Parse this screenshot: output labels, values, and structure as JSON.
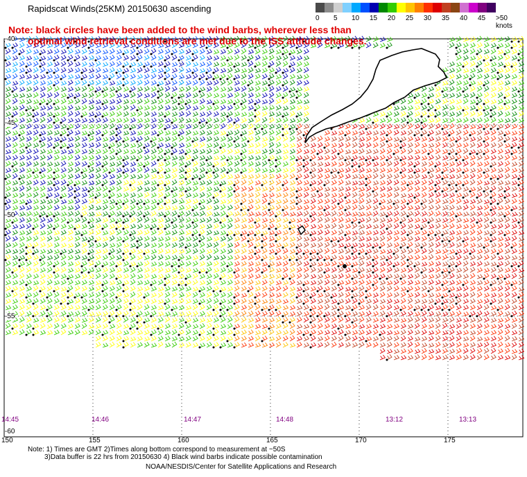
{
  "title": "Rapidscat Winds(25KM) 20150630 ascending",
  "note": {
    "line1": "Note: black circles have been added to the wind barbs, wherever less than",
    "line2": "optimal wind retrieval conditions are met due to the ISS attitude changes."
  },
  "colorbar": {
    "labels": [
      "0",
      "5",
      "10",
      "15",
      "20",
      "25",
      "30",
      "35",
      "40",
      "45",
      ">50 knots"
    ],
    "colors": [
      "#4a4a4a",
      "#8c8c8c",
      "#cfcfcf",
      "#7fd0ff",
      "#00a8ff",
      "#0050ff",
      "#0000b0",
      "#008800",
      "#33cc00",
      "#ffff00",
      "#ffc400",
      "#ff8000",
      "#ff3000",
      "#dd0000",
      "#c04020",
      "#8b4513",
      "#d070d0",
      "#cc00cc",
      "#800080",
      "#400060"
    ]
  },
  "axes": {
    "lon_ticks": [
      "150",
      "155",
      "160",
      "165",
      "170",
      "175"
    ],
    "lat_ticks": [
      "-40",
      "-45",
      "-50",
      "-55",
      "-60"
    ]
  },
  "times": [
    "14:45",
    "14:46",
    "14:47",
    "14:48",
    "13:12",
    "13:13"
  ],
  "footer": {
    "line1": "Note: 1) Times are GMT 2)Times along bottom correspond to measurement at ~50S",
    "line2": "3)Data buffer is 22 hrs from 20150630 4) Black wind barbs indicate possible contamination",
    "line3": "NOAA/NESDIS/Center for Satellite Applications and Research"
  }
}
